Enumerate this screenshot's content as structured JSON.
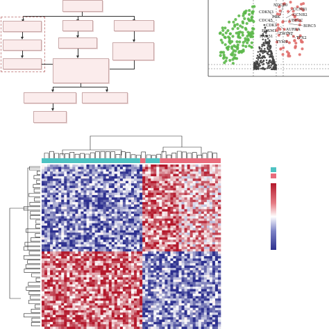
{
  "volcano": {
    "gene_labels": [
      "NDC80",
      "CCNB1",
      "CDKN3",
      "CCNB2",
      "PBK",
      "UBE2C",
      "CDC45",
      "BIRC5",
      "CDK1",
      "AURKA",
      "FOXM1",
      "ZWINT",
      "RAD51",
      "TPX2",
      "TYMS"
    ],
    "colors": {
      "down": "#5cb84a",
      "up": "#e0706e",
      "neutral": "#444444"
    }
  },
  "heatmap": {
    "group_colors": [
      "#4ec2c2",
      "#e86c7c"
    ],
    "scale_colors": [
      "#b3182b",
      "#ffffff",
      "#2c2f8e"
    ]
  }
}
